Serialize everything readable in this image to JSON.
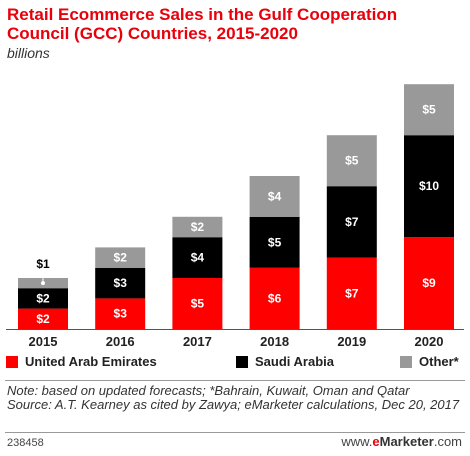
{
  "header": {
    "title": "Retail Ecommerce Sales in the Gulf Cooperation Council (GCC) Countries, 2015-2020",
    "subtitle": "billions"
  },
  "colors": {
    "uae": "#ff0000",
    "saudi": "#000000",
    "other": "#999999",
    "title": "#e8000b"
  },
  "chart_data": {
    "type": "bar",
    "stacked": true,
    "categories": [
      "2015",
      "2016",
      "2017",
      "2018",
      "2019",
      "2020"
    ],
    "series": [
      {
        "name": "United Arab Emirates",
        "values": [
          2,
          3,
          5,
          6,
          7,
          9
        ],
        "labels": [
          "$2",
          "$3",
          "$5",
          "$6",
          "$7",
          "$9"
        ]
      },
      {
        "name": "Saudi Arabia",
        "values": [
          2,
          3,
          4,
          5,
          7,
          10
        ],
        "labels": [
          "$2",
          "$3",
          "$4",
          "$5",
          "$7",
          "$10"
        ]
      },
      {
        "name": "Other*",
        "values": [
          1,
          2,
          2,
          4,
          5,
          5
        ],
        "labels": [
          "$1",
          "$2",
          "$2",
          "$4",
          "$5",
          "$5"
        ]
      }
    ],
    "ylim": [
      0,
      25
    ],
    "grid": false,
    "legend_position": "bottom"
  },
  "legend": {
    "items": [
      {
        "label": "United Arab Emirates"
      },
      {
        "label": "Saudi Arabia"
      },
      {
        "label": "Other*"
      }
    ]
  },
  "footer": {
    "note": "Note: based on updated forecasts; *Bahrain, Kuwait, Oman and Qatar",
    "source": "Source: A.T. Kearney as cited by Zawya; eMarketer calculations, Dec 20, 2017",
    "id": "238458",
    "brand_prefix": "www.",
    "brand_e": "e",
    "brand_name": "Marketer",
    "brand_suffix": ".com"
  }
}
